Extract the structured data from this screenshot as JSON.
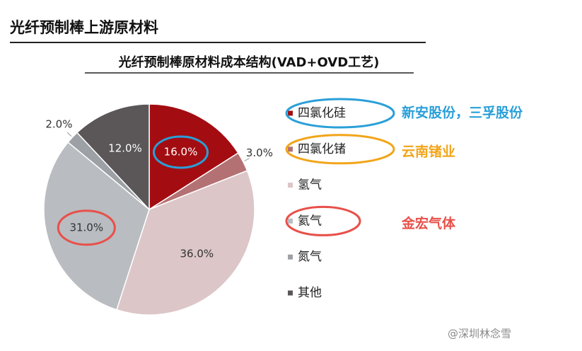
{
  "header": {
    "title": "光纤预制棒上游原材料"
  },
  "chart_data": {
    "type": "pie",
    "title": "光纤预制棒原材料成本结构(VAD+OVD工艺)",
    "categories": [
      "四氯化硅",
      "四氯化锗",
      "氢气",
      "氦气",
      "氮气",
      "其他"
    ],
    "values": [
      16.0,
      3.0,
      36.0,
      31.0,
      2.0,
      12.0
    ],
    "value_labels": [
      "16.0%",
      "3.0%",
      "36.0%",
      "31.0%",
      "2.0%",
      "12.0%"
    ],
    "colors": [
      "#a30d12",
      "#b37173",
      "#dcc6c8",
      "#b9bcc0",
      "#9da0a5",
      "#5b5759"
    ],
    "legend": "right"
  },
  "annotations": [
    {
      "text": "新安股份，三孚股份",
      "color": "#2a9fd8"
    },
    {
      "text": "云南锗业",
      "color": "#f2a51a"
    },
    {
      "text": "金宏气体",
      "color": "#e8504a"
    }
  ],
  "watermark": "@深圳林念雪"
}
